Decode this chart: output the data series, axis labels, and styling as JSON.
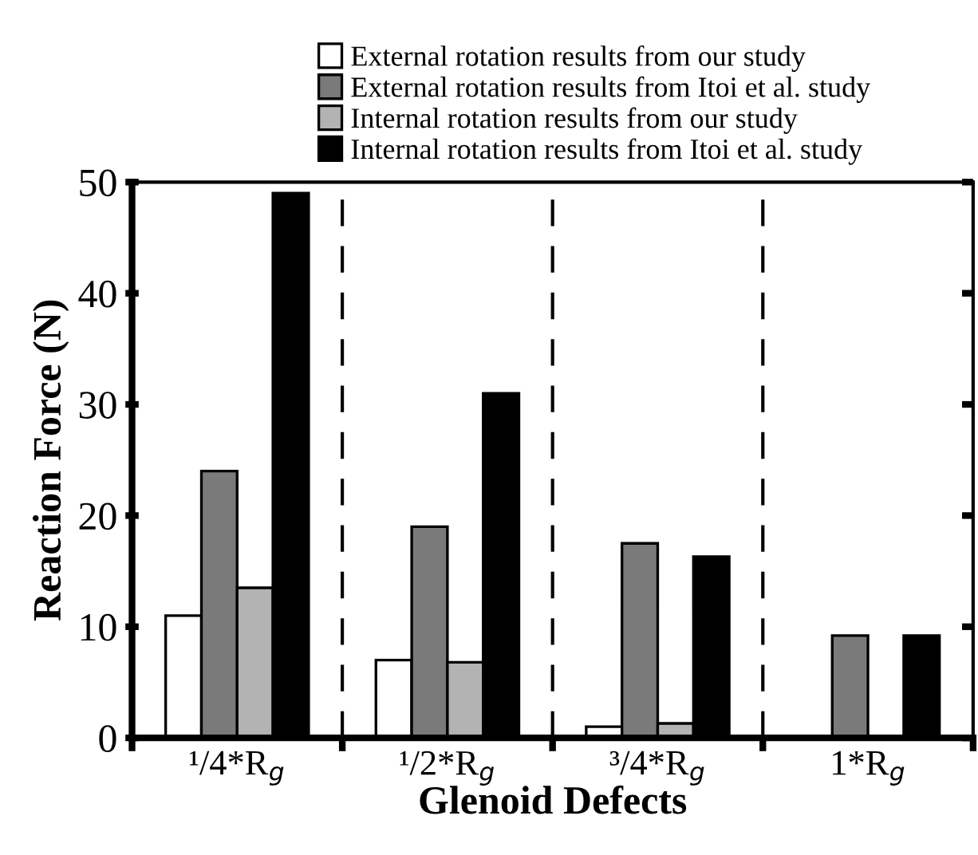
{
  "chart_data": {
    "type": "bar",
    "xlabel": "Glenoid Defects",
    "ylabel": "Reaction Force (N)",
    "categories": [
      "¹/4*R$_{g}$",
      "¹/2*R$_{g}$",
      "³/4*R$_{g}$",
      "1*R$_{g}$"
    ],
    "series": [
      {
        "name": "External rotation results from our study",
        "color": "#ffffff",
        "values": [
          11,
          7,
          1,
          null
        ]
      },
      {
        "name": "External rotation results from Itoi et al. study",
        "color": "#7a7a7a",
        "values": [
          24,
          19,
          17.5,
          9.2
        ]
      },
      {
        "name": "Internal rotation results from our study",
        "color": "#b3b3b3",
        "values": [
          13.5,
          6.8,
          1.3,
          null
        ]
      },
      {
        "name": "Internal rotation results from Itoi et al. study",
        "color": "#000000",
        "values": [
          49,
          31,
          16.3,
          9.2
        ]
      }
    ],
    "ylim": [
      0,
      50
    ],
    "yticks": [
      0,
      10,
      20,
      30,
      40,
      50
    ],
    "grid": false,
    "legend": "top"
  }
}
